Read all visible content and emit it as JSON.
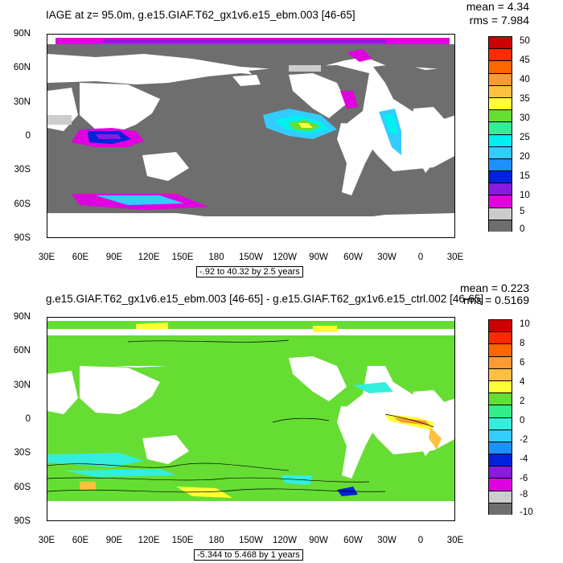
{
  "panels": [
    {
      "title": "IAGE at z=  95.0m, g.e15.GIAF.T62_gx1v6.e15_ebm.003 [46-65]",
      "mean": "mean = 4.34",
      "rms": "rms = 7.984",
      "range": "-.92 to 40.32 by 2.5 years",
      "y_ticks": [
        "90N",
        "60N",
        "30N",
        "0",
        "30S",
        "60S",
        "90S"
      ],
      "x_ticks": [
        "30E",
        "60E",
        "90E",
        "120E",
        "150E",
        "180",
        "150W",
        "120W",
        "90W",
        "60W",
        "30W",
        "0",
        "30E"
      ],
      "colorbar_labels": [
        "50",
        "45",
        "40",
        "35",
        "30",
        "25",
        "20",
        "15",
        "10",
        "5",
        "0"
      ],
      "colorbar_colors": [
        "#cc0000",
        "#ff2a00",
        "#ff6600",
        "#ff9933",
        "#ffc040",
        "#ffff33",
        "#66dd33",
        "#33ee99",
        "#00f0f0",
        "#33ccff",
        "#1f8fff",
        "#0022dd",
        "#8a1adf",
        "#e000e0",
        "#cccccc",
        "#6e6e6e"
      ]
    },
    {
      "title": "g.e15.GIAF.T62_gx1v6.e15_ebm.003 [46-65] - g.e15.GIAF.T62_gx1v6.e15_ctrl.002 [46-65]",
      "mean": "mean = 0.223",
      "rms": "rms = 0.5169",
      "range": "-5.344 to 5.468 by 1 years",
      "y_ticks": [
        "90N",
        "60N",
        "30N",
        "0",
        "30S",
        "60S",
        "90S"
      ],
      "x_ticks": [
        "30E",
        "60E",
        "90E",
        "120E",
        "150E",
        "180",
        "150W",
        "120W",
        "90W",
        "60W",
        "30W",
        "0",
        "30E"
      ],
      "colorbar_labels": [
        "10",
        "8",
        "6",
        "4",
        "2",
        "0",
        "-2",
        "-4",
        "-6",
        "-8",
        "-10"
      ],
      "colorbar_colors": [
        "#cc0000",
        "#ff2a00",
        "#ff6600",
        "#ff9933",
        "#ffc040",
        "#ffff33",
        "#66dd33",
        "#33ee88",
        "#33eedd",
        "#33ccff",
        "#1f8fff",
        "#0022dd",
        "#8a1adf",
        "#e000e0",
        "#cccccc",
        "#6e6e6e"
      ]
    }
  ]
}
